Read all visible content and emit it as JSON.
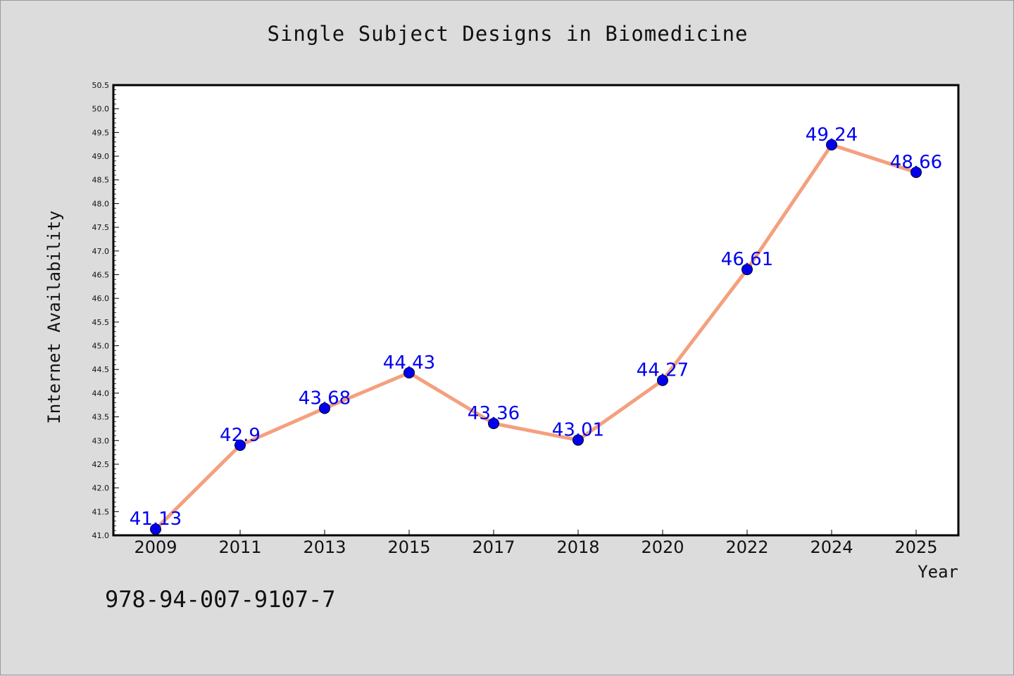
{
  "chart_data": {
    "type": "line",
    "title": "Single Subject Designs in Biomedicine",
    "xlabel": "Year",
    "ylabel": "Internet Availability",
    "categories": [
      "2009",
      "2011",
      "2013",
      "2015",
      "2017",
      "2018",
      "2020",
      "2022",
      "2024",
      "2025"
    ],
    "series": [
      {
        "values": [
          41.13,
          42.9,
          43.68,
          44.43,
          43.36,
          43.01,
          44.27,
          46.61,
          49.24,
          48.66
        ],
        "labels": [
          "41.13",
          "42.9",
          "43.68",
          "44.43",
          "43.36",
          "43.01",
          "44.27",
          "46.61",
          "49.24",
          "48.66"
        ],
        "line_color": "#f4a07e",
        "marker_color": "#0000ee",
        "label_color": "#0000ee"
      }
    ],
    "ylim": [
      41.0,
      50.5
    ],
    "yticks": [
      "41.0",
      "41.5",
      "42.0",
      "42.5",
      "43.0",
      "43.5",
      "44.0",
      "44.5",
      "45.0",
      "45.5",
      "46.0",
      "46.5",
      "47.0",
      "47.5",
      "48.0",
      "48.5",
      "49.0",
      "49.5",
      "50.0",
      "50.5"
    ],
    "grid": false,
    "legend": "none"
  },
  "footer": {
    "code": "978-94-007-9107-7"
  },
  "colors": {
    "background": "#dcdcdc",
    "plot_background": "#ffffff"
  }
}
